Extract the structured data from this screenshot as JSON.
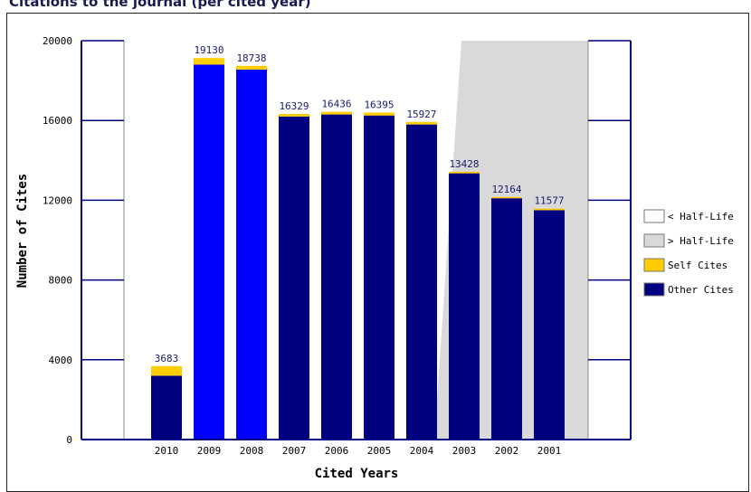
{
  "chart_data": {
    "type": "bar",
    "title": "Citations to the journal (per cited year)",
    "xlabel": "Cited Years",
    "ylabel": "Number of Cites",
    "ylim": [
      0,
      20000
    ],
    "yticks": [
      "0",
      "4000",
      "8000",
      "12000",
      "16000",
      "20000"
    ],
    "categories": [
      "2010",
      "2009",
      "2008",
      "2007",
      "2006",
      "2005",
      "2004",
      "2003",
      "2002",
      "2001"
    ],
    "totals": [
      3683,
      19130,
      18738,
      16329,
      16436,
      16395,
      15927,
      13428,
      12164,
      11577
    ],
    "total_labels": [
      "3683",
      "19130",
      "18738",
      "16329",
      "16436",
      "16395",
      "15927",
      "13428",
      "12164",
      "11577"
    ],
    "series": [
      {
        "name": "Other Cites",
        "color": "#000080",
        "highlight_color": "#0000ff",
        "values": [
          3200,
          18800,
          18550,
          16200,
          16300,
          16250,
          15800,
          13350,
          12100,
          11500
        ]
      },
      {
        "name": "Self Cites",
        "color": "#ffcc00",
        "values": [
          483,
          330,
          188,
          129,
          136,
          145,
          127,
          78,
          64,
          77
        ]
      }
    ],
    "highlighted_categories": [
      "2009",
      "2008"
    ],
    "legend": {
      "placement": "right",
      "items": [
        {
          "label": "< Half-Life",
          "color": "#ffffff"
        },
        {
          "label": "> Half-Life",
          "color": "#d9d9d9"
        },
        {
          "label": "Self Cites",
          "color": "#ffcc00"
        },
        {
          "label": "Other Cites",
          "color": "#000080"
        }
      ]
    },
    "half_life_region_color": "#d9d9d9",
    "grid": false
  }
}
